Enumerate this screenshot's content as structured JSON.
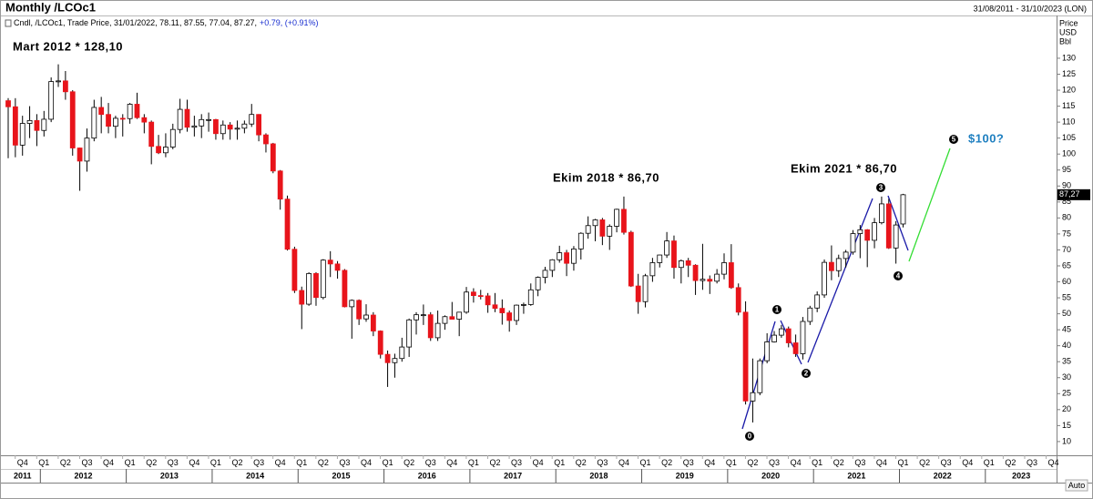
{
  "chart_data": {
    "type": "candlestick",
    "title": "Monthly /LCOc1",
    "date_range": "31/08/2011 - 31/10/2023 (LON)",
    "info_text": "Cndl, /LCOc1, Trade Price, 31/01/2022, 78.11, 87.55, 77.04, 87.27,",
    "info_change": "+0.79, (+0.91%)",
    "y_axis_label": [
      "Price",
      "USD",
      "Bbl"
    ],
    "last_price_label": "87,27",
    "autoscale_label": "Auto",
    "annotations": [
      "Mart 2012 * 128,10",
      "Ekim 2018 * 86,70",
      "Ekim 2021 * 86,70",
      "$100?"
    ],
    "wave_labels": [
      "0",
      "1",
      "2",
      "3",
      "4",
      "5"
    ],
    "up_color": "#ffffff",
    "down_color": "#e8141b",
    "ylim": [
      5.7,
      143.1
    ],
    "yticks": [
      10,
      15,
      20,
      25,
      30,
      35,
      40,
      45,
      50,
      55,
      60,
      65,
      70,
      75,
      80,
      85,
      90,
      95,
      100,
      105,
      110,
      115,
      120,
      125,
      130
    ],
    "x_quarter_labels": [
      "Q4",
      "Q1",
      "Q2",
      "Q3",
      "Q4",
      "Q1",
      "Q2",
      "Q3",
      "Q4",
      "Q1",
      "Q2",
      "Q3",
      "Q4",
      "Q1",
      "Q2",
      "Q3",
      "Q4",
      "Q1",
      "Q2",
      "Q3",
      "Q4",
      "Q1",
      "Q2",
      "Q3",
      "Q4",
      "Q1",
      "Q2",
      "Q3",
      "Q4",
      "Q1",
      "Q2",
      "Q3",
      "Q4",
      "Q1",
      "Q2",
      "Q3",
      "Q4",
      "Q1",
      "Q2",
      "Q3",
      "Q4",
      "Q1",
      "Q2",
      "Q3",
      "Q4",
      "Q1",
      "Q2",
      "Q3",
      "Q4"
    ],
    "x_year_labels": [
      "2011",
      "2012",
      "2013",
      "2014",
      "2015",
      "2016",
      "2017",
      "2018",
      "2019",
      "2020",
      "2021",
      "2022",
      "2023"
    ],
    "ohlc": [
      [
        116.7,
        117.5,
        98.7,
        114.8
      ],
      [
        114.8,
        117.5,
        99.0,
        102.8
      ],
      [
        102.8,
        112.0,
        99.5,
        109.6
      ],
      [
        109.6,
        115.0,
        105.0,
        110.5
      ],
      [
        110.5,
        112.5,
        102.5,
        107.4
      ],
      [
        107.4,
        113.5,
        105.5,
        110.9
      ],
      [
        110.9,
        124.0,
        110.0,
        122.7
      ],
      [
        122.7,
        128.1,
        121.0,
        122.9
      ],
      [
        122.9,
        126.0,
        117.0,
        119.5
      ],
      [
        119.5,
        120.0,
        99.5,
        101.9
      ],
      [
        101.9,
        102.0,
        88.5,
        97.8
      ],
      [
        97.8,
        108.0,
        94.5,
        105.0
      ],
      [
        105.0,
        117.0,
        104.0,
        114.6
      ],
      [
        114.6,
        117.9,
        106.5,
        112.4
      ],
      [
        112.4,
        116.0,
        106.5,
        108.7
      ],
      [
        108.7,
        112.0,
        105.0,
        111.2
      ],
      [
        111.2,
        112.5,
        105.5,
        111.1
      ],
      [
        111.1,
        116.0,
        109.5,
        115.6
      ],
      [
        115.6,
        119.2,
        111.0,
        111.4
      ],
      [
        111.4,
        112.5,
        106.5,
        110.0
      ],
      [
        110.0,
        110.5,
        96.8,
        102.4
      ],
      [
        102.4,
        106.0,
        100.0,
        100.4
      ],
      [
        100.4,
        106.5,
        99.0,
        102.2
      ],
      [
        102.2,
        109.5,
        101.5,
        107.7
      ],
      [
        107.7,
        117.3,
        106.5,
        114.0
      ],
      [
        114.0,
        117.0,
        107.0,
        108.4
      ],
      [
        108.4,
        112.0,
        105.5,
        108.8
      ],
      [
        108.8,
        112.5,
        105.0,
        110.8
      ],
      [
        110.8,
        113.0,
        107.0,
        110.8
      ],
      [
        110.8,
        111.0,
        104.5,
        106.4
      ],
      [
        106.4,
        110.5,
        104.5,
        109.1
      ],
      [
        109.1,
        110.0,
        104.5,
        107.8
      ],
      [
        107.8,
        110.5,
        104.5,
        108.1
      ],
      [
        108.1,
        110.5,
        106.5,
        109.4
      ],
      [
        109.4,
        115.7,
        108.5,
        112.4
      ],
      [
        112.4,
        112.5,
        104.0,
        106.0
      ],
      [
        106.0,
        106.5,
        100.5,
        103.2
      ],
      [
        103.2,
        103.5,
        94.0,
        94.7
      ],
      [
        94.7,
        95.0,
        82.6,
        85.9
      ],
      [
        85.9,
        87.0,
        69.8,
        70.2
      ],
      [
        70.2,
        71.0,
        56.5,
        57.3
      ],
      [
        57.3,
        58.5,
        45.2,
        53.0
      ],
      [
        53.0,
        63.0,
        52.5,
        62.6
      ],
      [
        62.6,
        63.0,
        52.5,
        55.1
      ],
      [
        55.1,
        67.1,
        54.5,
        66.8
      ],
      [
        66.8,
        69.6,
        61.5,
        65.6
      ],
      [
        65.6,
        66.5,
        61.0,
        63.6
      ],
      [
        63.6,
        64.0,
        52.0,
        52.2
      ],
      [
        52.2,
        54.5,
        42.2,
        54.2
      ],
      [
        54.2,
        54.5,
        46.5,
        48.4
      ],
      [
        48.4,
        53.0,
        47.5,
        49.6
      ],
      [
        49.6,
        50.5,
        43.0,
        44.6
      ],
      [
        44.6,
        44.8,
        36.0,
        37.3
      ],
      [
        37.3,
        38.5,
        27.1,
        34.7
      ],
      [
        34.7,
        37.5,
        30.0,
        36.0
      ],
      [
        36.0,
        42.5,
        35.0,
        39.6
      ],
      [
        39.6,
        48.5,
        36.5,
        48.1
      ],
      [
        48.1,
        50.5,
        43.5,
        49.7
      ],
      [
        49.7,
        52.9,
        46.5,
        49.7
      ],
      [
        49.7,
        50.5,
        41.5,
        42.5
      ],
      [
        42.5,
        51.0,
        41.5,
        47.0
      ],
      [
        47.0,
        49.5,
        45.0,
        49.1
      ],
      [
        49.1,
        53.7,
        48.5,
        48.3
      ],
      [
        48.3,
        50.5,
        43.0,
        50.5
      ],
      [
        50.5,
        58.4,
        50.0,
        56.8
      ],
      [
        56.8,
        58.0,
        53.5,
        55.7
      ],
      [
        55.7,
        57.5,
        54.5,
        55.6
      ],
      [
        55.6,
        56.5,
        50.3,
        52.8
      ],
      [
        52.8,
        56.5,
        50.5,
        51.7
      ],
      [
        51.7,
        54.5,
        46.6,
        50.3
      ],
      [
        50.3,
        51.0,
        44.4,
        47.9
      ],
      [
        47.9,
        52.9,
        46.5,
        52.7
      ],
      [
        52.7,
        53.5,
        50.0,
        52.9
      ],
      [
        52.9,
        59.5,
        52.5,
        57.5
      ],
      [
        57.5,
        61.7,
        55.5,
        61.4
      ],
      [
        61.4,
        64.7,
        59.5,
        63.6
      ],
      [
        63.6,
        67.1,
        61.5,
        66.9
      ],
      [
        66.9,
        71.3,
        66.0,
        69.1
      ],
      [
        69.1,
        70.0,
        61.8,
        65.8
      ],
      [
        65.8,
        71.2,
        63.5,
        70.3
      ],
      [
        70.3,
        75.5,
        67.0,
        75.2
      ],
      [
        75.2,
        80.5,
        73.5,
        77.6
      ],
      [
        77.6,
        79.7,
        72.7,
        79.4
      ],
      [
        79.4,
        80.0,
        71.5,
        74.3
      ],
      [
        74.3,
        78.0,
        70.0,
        77.4
      ],
      [
        77.4,
        82.9,
        75.5,
        82.7
      ],
      [
        82.7,
        86.7,
        74.8,
        75.5
      ],
      [
        75.5,
        76.0,
        58.4,
        58.7
      ],
      [
        58.7,
        62.5,
        50.0,
        53.8
      ],
      [
        53.8,
        62.5,
        52.0,
        61.9
      ],
      [
        61.9,
        67.5,
        60.0,
        66.0
      ],
      [
        66.0,
        68.5,
        64.5,
        68.4
      ],
      [
        68.4,
        75.6,
        67.5,
        72.8
      ],
      [
        72.8,
        74.5,
        61.0,
        64.5
      ],
      [
        64.5,
        67.0,
        59.5,
        66.6
      ],
      [
        66.6,
        67.5,
        61.5,
        65.2
      ],
      [
        65.2,
        65.5,
        55.9,
        60.4
      ],
      [
        60.4,
        71.9,
        57.5,
        60.8
      ],
      [
        60.8,
        62.0,
        56.2,
        60.2
      ],
      [
        60.2,
        64.0,
        59.5,
        62.4
      ],
      [
        62.4,
        68.9,
        60.8,
        66.0
      ],
      [
        66.0,
        71.8,
        57.8,
        58.2
      ],
      [
        58.2,
        59.5,
        49.5,
        50.5
      ],
      [
        50.5,
        53.9,
        21.6,
        22.7
      ],
      [
        22.7,
        36.0,
        15.98,
        25.3
      ],
      [
        25.3,
        36.0,
        24.5,
        35.3
      ],
      [
        35.3,
        43.9,
        34.5,
        41.2
      ],
      [
        41.2,
        44.6,
        41.0,
        43.3
      ],
      [
        43.3,
        46.5,
        42.5,
        45.3
      ],
      [
        45.3,
        46.0,
        39.5,
        40.9
      ],
      [
        40.9,
        43.5,
        36.5,
        37.5
      ],
      [
        37.5,
        49.0,
        35.7,
        47.6
      ],
      [
        47.6,
        52.5,
        46.5,
        51.8
      ],
      [
        51.8,
        57.0,
        50.5,
        55.9
      ],
      [
        55.9,
        67.0,
        55.0,
        66.1
      ],
      [
        66.1,
        71.4,
        60.5,
        63.5
      ],
      [
        63.5,
        68.5,
        61.5,
        67.3
      ],
      [
        67.3,
        70.0,
        64.5,
        69.3
      ],
      [
        69.3,
        76.2,
        68.5,
        75.1
      ],
      [
        75.1,
        77.8,
        67.4,
        76.3
      ],
      [
        76.3,
        76.5,
        64.6,
        73.0
      ],
      [
        73.0,
        80.0,
        70.5,
        78.5
      ],
      [
        78.5,
        86.7,
        78.0,
        84.4
      ],
      [
        84.4,
        86.0,
        70.3,
        70.6
      ],
      [
        70.6,
        79.0,
        65.7,
        77.8
      ],
      [
        78.11,
        87.55,
        77.04,
        87.27
      ]
    ]
  }
}
